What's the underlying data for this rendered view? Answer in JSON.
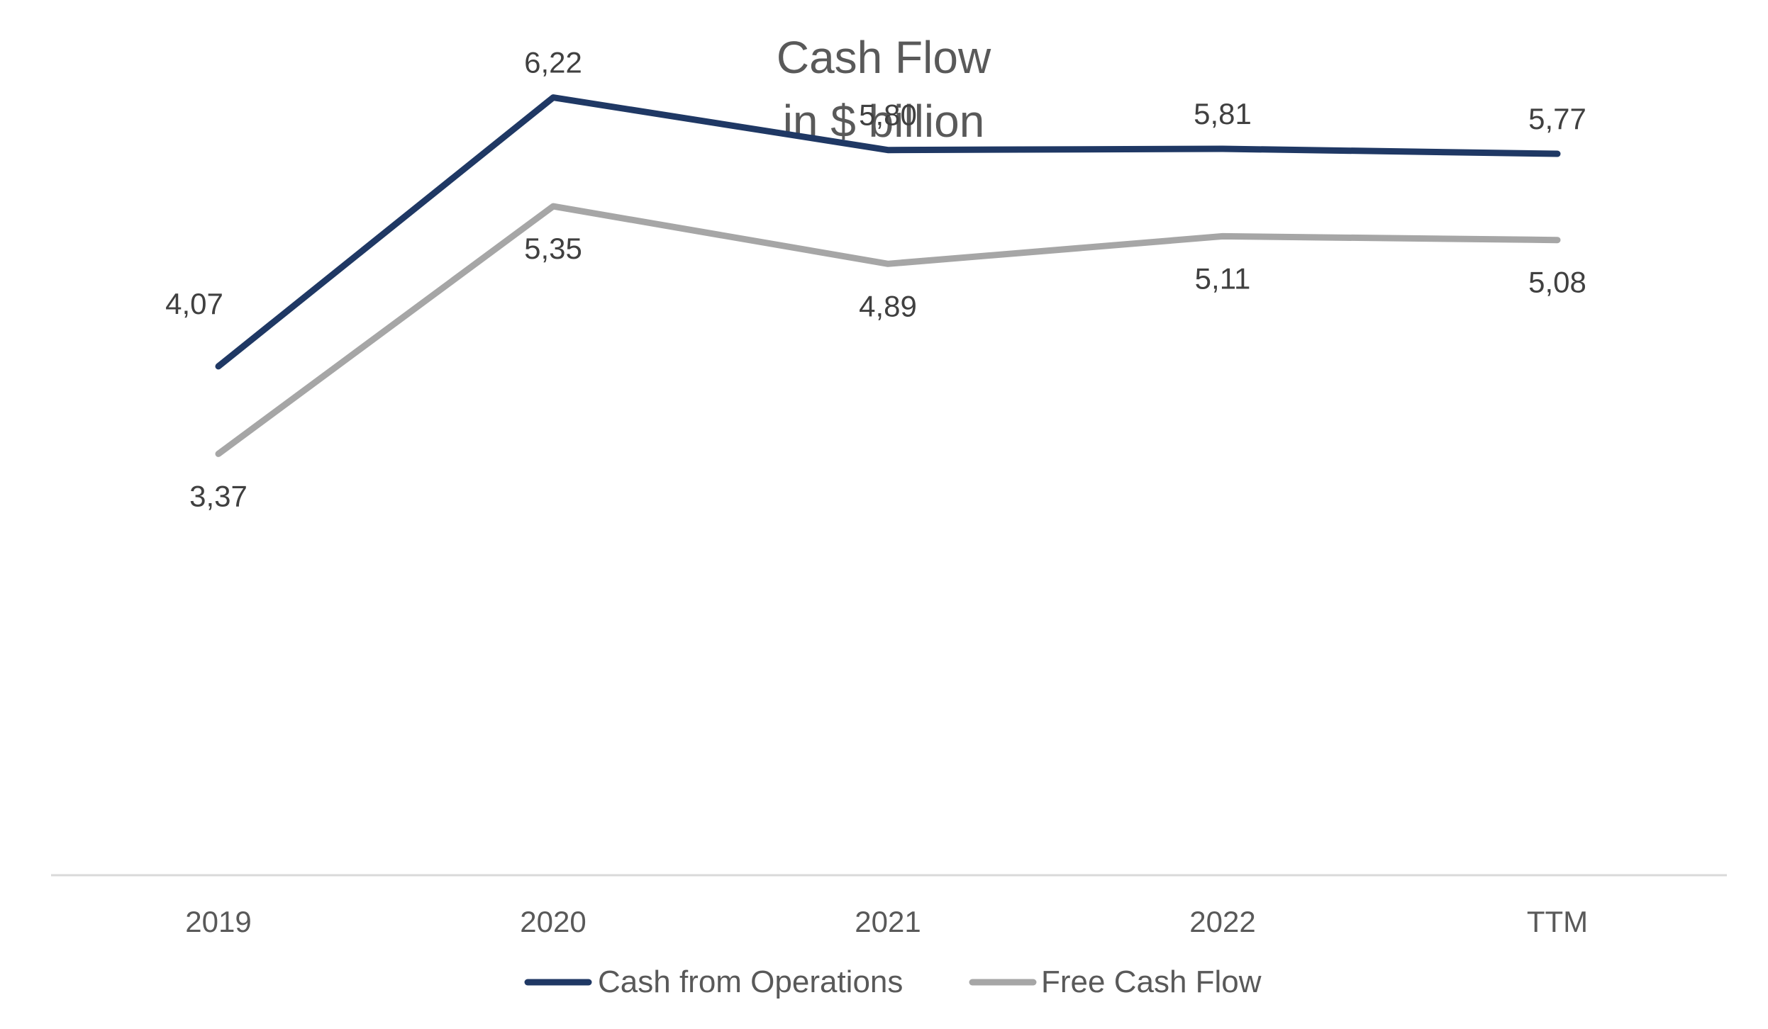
{
  "chart_data": {
    "type": "line",
    "title": "Cash Flow",
    "subtitle": "in $ billion",
    "categories": [
      "2019",
      "2020",
      "2021",
      "2022",
      "TTM"
    ],
    "series": [
      {
        "name": "Cash from Operations",
        "color": "#1f3864",
        "values": [
          4.07,
          6.22,
          5.8,
          5.81,
          5.77
        ],
        "labels": [
          "4,07",
          "6,22",
          "5,80",
          "5,81",
          "5,77"
        ],
        "label_position": [
          "left",
          "above",
          "above",
          "above",
          "above"
        ]
      },
      {
        "name": "Free Cash Flow",
        "color": "#a6a6a6",
        "values": [
          3.37,
          5.35,
          4.89,
          5.11,
          5.08
        ],
        "labels": [
          "3,37",
          "5,35",
          "4,89",
          "5,11",
          "5,08"
        ],
        "label_position": [
          "below",
          "below",
          "below",
          "below",
          "below"
        ]
      }
    ],
    "xlabel": "",
    "ylabel": "",
    "ylim": [
      0,
      7
    ],
    "grid": false,
    "legend": "bottom"
  }
}
